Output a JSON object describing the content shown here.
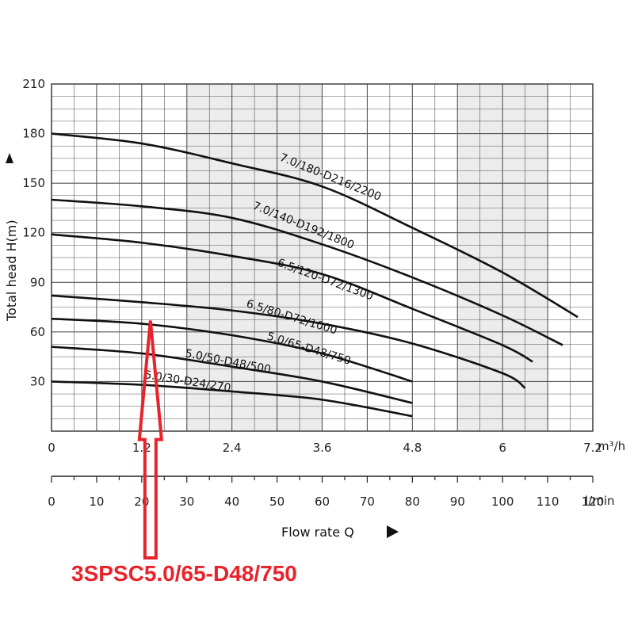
{
  "chart_data": {
    "type": "line",
    "ylabel": "Total head H(m)",
    "xlabel": "Flow rate Q",
    "x_unit": "m³/h",
    "x2_unit": "l/min",
    "xlim": [
      0,
      7.2
    ],
    "ylim": [
      0,
      210
    ],
    "x_ticks": [
      "0",
      "1.2",
      "2.4",
      "3.6",
      "4.8",
      "6",
      "7.2"
    ],
    "x_tick_values": [
      0,
      1.2,
      2.4,
      3.6,
      4.8,
      6,
      7.2
    ],
    "x2_ticks": [
      "0",
      "10",
      "20",
      "30",
      "40",
      "50",
      "60",
      "70",
      "80",
      "90",
      "100",
      "110",
      "120"
    ],
    "x2_tick_values": [
      0,
      10,
      20,
      30,
      40,
      50,
      60,
      70,
      80,
      90,
      100,
      110,
      120
    ],
    "y_ticks": [
      "30",
      "60",
      "90",
      "120",
      "150",
      "180",
      "210"
    ],
    "y_tick_values": [
      30,
      60,
      90,
      120,
      150,
      180,
      210
    ],
    "grid": true,
    "series": [
      {
        "name": "7.0/180-D216/2200",
        "x": [
          0,
          1.2,
          2.4,
          3.6,
          4.8,
          6,
          7.0
        ],
        "y": [
          180,
          174,
          162,
          148,
          123,
          96,
          69
        ]
      },
      {
        "name": "7.0/140-D192/1800",
        "x": [
          0,
          1.2,
          2.4,
          3.6,
          4.8,
          6,
          6.8
        ],
        "y": [
          140,
          136,
          129,
          113,
          93,
          70,
          52
        ]
      },
      {
        "name": "6.5/120-D72/1300",
        "x": [
          0,
          1.2,
          2.4,
          3.6,
          4.8,
          6,
          6.4
        ],
        "y": [
          119,
          114,
          106,
          95,
          74,
          52,
          42
        ]
      },
      {
        "name": "6.5/80-D72/1000",
        "x": [
          0,
          1.2,
          2.4,
          3.6,
          4.8,
          6,
          6.3
        ],
        "y": [
          82,
          78,
          73,
          65,
          53,
          35,
          26
        ]
      },
      {
        "name": "5.0/65-D48/750",
        "x": [
          0,
          1.2,
          2.4,
          3.6,
          4.8
        ],
        "y": [
          68,
          65,
          58,
          47,
          30
        ]
      },
      {
        "name": "5.0/50-D48/500",
        "x": [
          0,
          1.2,
          2.4,
          3.6,
          4.8
        ],
        "y": [
          51,
          47,
          39,
          30,
          17
        ]
      },
      {
        "name": "5.0/30-D24/270",
        "x": [
          0,
          1.2,
          2.4,
          3.6,
          4.8
        ],
        "y": [
          30,
          28,
          24,
          19,
          9
        ]
      }
    ],
    "annotation": {
      "text": "3SPSC5.0/65-D48/750",
      "arrow_x": 1.2,
      "arrow_y": 63,
      "color": "#e8232b"
    }
  }
}
